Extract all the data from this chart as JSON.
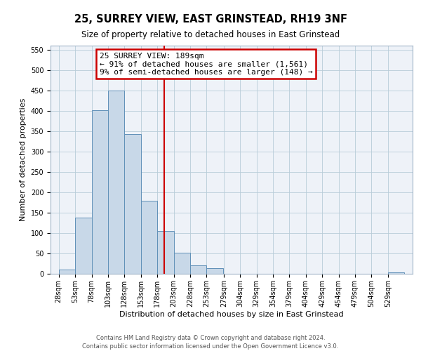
{
  "title": "25, SURREY VIEW, EAST GRINSTEAD, RH19 3NF",
  "subtitle": "Size of property relative to detached houses in East Grinstead",
  "xlabel": "Distribution of detached houses by size in East Grinstead",
  "ylabel": "Number of detached properties",
  "bin_left_edges": [
    28,
    53,
    78,
    103,
    128,
    153,
    178,
    203,
    228,
    253,
    279,
    304,
    329,
    354,
    379,
    404,
    429,
    454,
    479,
    504,
    529
  ],
  "bin_width": 25,
  "bin_heights": [
    10,
    137,
    401,
    449,
    343,
    180,
    105,
    51,
    20,
    13,
    0,
    0,
    0,
    0,
    0,
    0,
    0,
    0,
    0,
    0,
    3
  ],
  "bar_color": "#c8d8e8",
  "bar_edgecolor": "#6090b8",
  "reference_line_x": 189,
  "reference_line_color": "#cc0000",
  "annotation_line1": "25 SURREY VIEW: 189sqm",
  "annotation_line2": "← 91% of detached houses are smaller (1,561)",
  "annotation_line3": "9% of semi-detached houses are larger (148) →",
  "annotation_box_edgecolor": "#cc0000",
  "annotation_box_facecolor": "#ffffff",
  "ylim": [
    0,
    560
  ],
  "yticks": [
    0,
    50,
    100,
    150,
    200,
    250,
    300,
    350,
    400,
    450,
    500,
    550
  ],
  "tick_labels": [
    "28sqm",
    "53sqm",
    "78sqm",
    "103sqm",
    "128sqm",
    "153sqm",
    "178sqm",
    "203sqm",
    "228sqm",
    "253sqm",
    "279sqm",
    "304sqm",
    "329sqm",
    "354sqm",
    "379sqm",
    "404sqm",
    "429sqm",
    "454sqm",
    "479sqm",
    "504sqm",
    "529sqm"
  ],
  "footer1": "Contains HM Land Registry data © Crown copyright and database right 2024.",
  "footer2": "Contains public sector information licensed under the Open Government Licence v3.0.",
  "title_fontsize": 10.5,
  "subtitle_fontsize": 8.5,
  "axis_label_fontsize": 8,
  "tick_fontsize": 7,
  "annotation_fontsize": 8,
  "footer_fontsize": 6,
  "bg_color": "#eef2f8",
  "grid_color": "#b8ccd8"
}
